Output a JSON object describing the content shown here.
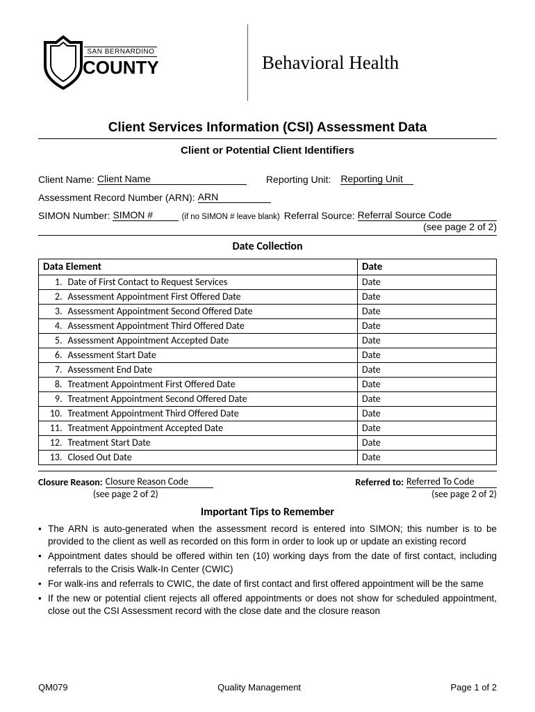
{
  "header": {
    "county_top": "SAN BERNARDINO",
    "county_main": "COUNTY",
    "dept_title": "Behavioral Health"
  },
  "titles": {
    "main": "Client Services Information (CSI) Assessment Data",
    "identifiers": "Client or Potential Client Identifiers",
    "date_collection": "Date Collection",
    "tips": "Important Tips to Remember"
  },
  "fields": {
    "client_name_label": "Client Name:",
    "client_name_value": "Client Name",
    "reporting_unit_label": "Reporting Unit:",
    "reporting_unit_value": "Reporting Unit",
    "arn_label": "Assessment Record Number (ARN):",
    "arn_value": "ARN",
    "simon_label": "SIMON Number:",
    "simon_value": "SIMON #",
    "simon_helper": "(if no SIMON # leave blank)",
    "referral_label": "Referral Source:",
    "referral_value": "Referral Source Code",
    "referral_note": "(see page 2 of 2)"
  },
  "table": {
    "col_element": "Data Element",
    "col_date": "Date",
    "rows": [
      {
        "n": "1.",
        "label": "Date of First Contact to Request Services",
        "date": "Date"
      },
      {
        "n": "2.",
        "label": "Assessment Appointment First Offered Date",
        "date": "Date"
      },
      {
        "n": "3.",
        "label": "Assessment Appointment Second Offered Date",
        "date": "Date"
      },
      {
        "n": "4.",
        "label": "Assessment Appointment Third Offered Date",
        "date": "Date"
      },
      {
        "n": "5.",
        "label": "Assessment Appointment Accepted Date",
        "date": "Date"
      },
      {
        "n": "6.",
        "label": "Assessment Start Date",
        "date": "Date"
      },
      {
        "n": "7.",
        "label": "Assessment End Date",
        "date": "Date"
      },
      {
        "n": "8.",
        "label": "Treatment Appointment First Offered Date",
        "date": "Date"
      },
      {
        "n": "9.",
        "label": "Treatment Appointment Second Offered Date",
        "date": "Date"
      },
      {
        "n": "10.",
        "label": "Treatment Appointment Third Offered Date",
        "date": "Date"
      },
      {
        "n": "11.",
        "label": "Treatment Appointment Accepted Date",
        "date": "Date"
      },
      {
        "n": "12.",
        "label": "Treatment Start Date",
        "date": "Date"
      },
      {
        "n": "13.",
        "label": "Closed Out Date",
        "date": "Date"
      }
    ]
  },
  "closure": {
    "reason_label": "Closure Reason:",
    "reason_value": "Closure Reason Code",
    "reason_note": "(see page 2 of 2)",
    "referred_label": "Referred to:",
    "referred_value": "Referred To Code",
    "referred_note": "(see page 2 of 2)"
  },
  "tips": [
    "The ARN is auto-generated when the assessment record is entered into SIMON; this number is to be provided to the client as well as recorded on this form in order to look up or update an existing record",
    "Appointment dates should be offered within ten (10) working days from the date of first contact, including  referrals to the Crisis Walk-In Center (CWIC)",
    "For walk-ins and referrals to CWIC, the date of first contact and first offered appointment will be the same",
    "If the new or potential client rejects all offered appointments or does not show for scheduled appointment, close out the CSI Assessment record with the close date and the closure reason"
  ],
  "footer": {
    "form_id": "QM079",
    "center": "Quality Management",
    "page": "Page 1 of 2"
  }
}
